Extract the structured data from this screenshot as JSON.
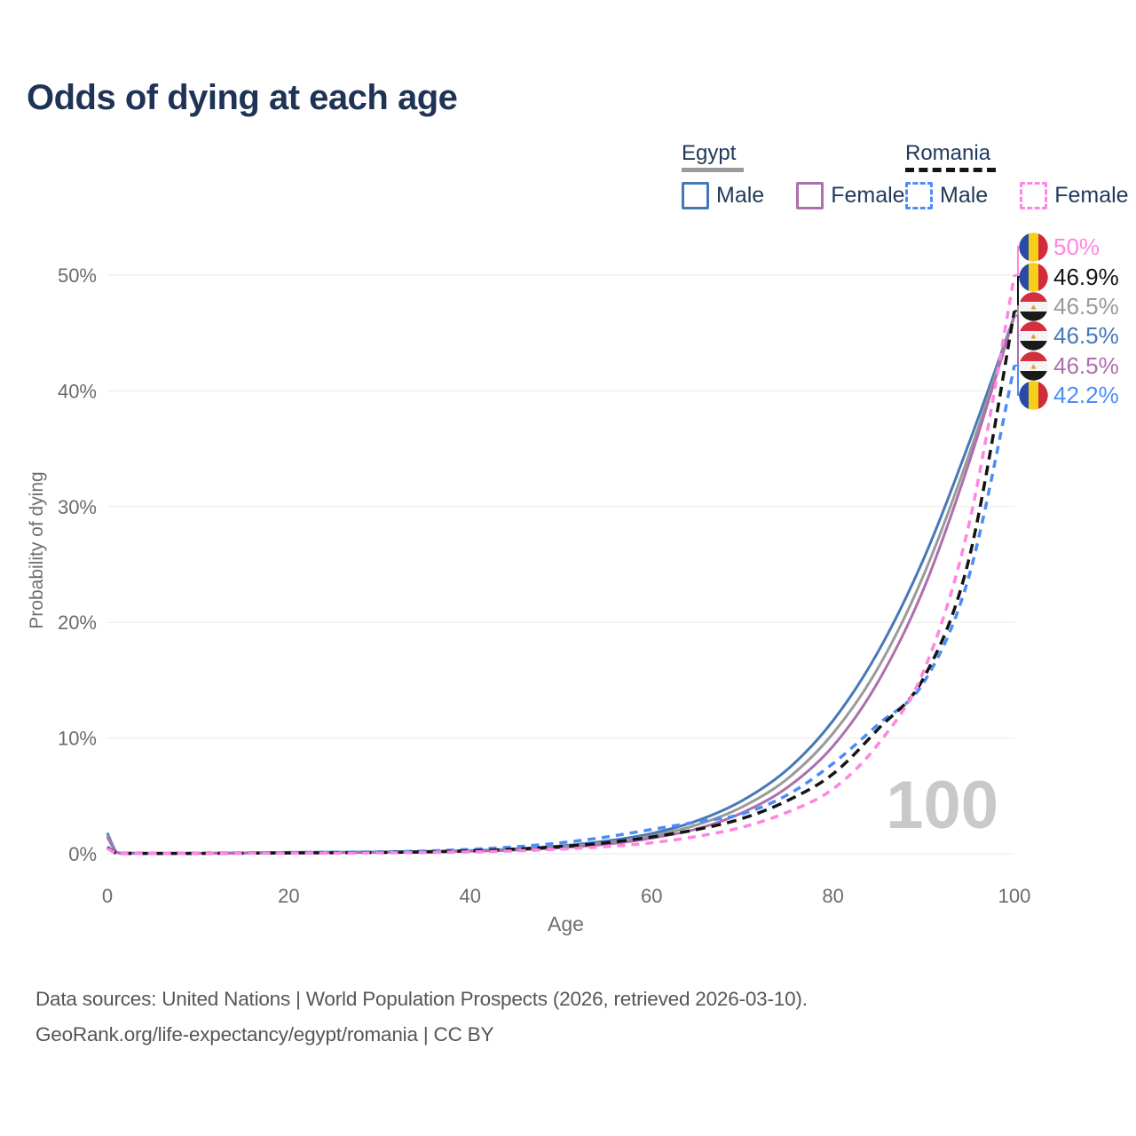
{
  "title": "Odds of dying at each age",
  "watermark": "100",
  "legend": {
    "groups": [
      {
        "name": "Egypt",
        "line_style": "solid",
        "line_color": "#9a9a9a",
        "items": [
          {
            "label": "Male",
            "color": "#4678b8",
            "style": "solid"
          },
          {
            "label": "Female",
            "color": "#ad6fad",
            "style": "solid"
          }
        ]
      },
      {
        "name": "Romania",
        "line_style": "dashed",
        "line_color": "#141414",
        "items": [
          {
            "label": "Male",
            "color": "#4c8df5",
            "style": "dashed"
          },
          {
            "label": "Female",
            "color": "#ff85e2",
            "style": "dashed"
          }
        ]
      }
    ]
  },
  "axes": {
    "x_label": "Age",
    "y_label": "Probability of dying",
    "x_ticks": [
      {
        "label": "0",
        "value": 0
      },
      {
        "label": "20",
        "value": 20
      },
      {
        "label": "40",
        "value": 40
      },
      {
        "label": "60",
        "value": 60
      },
      {
        "label": "80",
        "value": 80
      },
      {
        "label": "100",
        "value": 100
      }
    ],
    "y_ticks": [
      {
        "label": "0%",
        "value": 0
      },
      {
        "label": "10%",
        "value": 10
      },
      {
        "label": "20%",
        "value": 20
      },
      {
        "label": "30%",
        "value": 30
      },
      {
        "label": "40%",
        "value": 40
      },
      {
        "label": "50%",
        "value": 50
      }
    ]
  },
  "chart_data": {
    "type": "line",
    "title": "Odds of dying at each age",
    "xlabel": "Age",
    "ylabel": "Probability of dying",
    "xlim": [
      0,
      100
    ],
    "ylim_pct": [
      0,
      50
    ],
    "grid": "horizontal-only",
    "legend_position": "top-right",
    "x_ages": [
      0,
      1,
      2,
      3,
      4,
      5,
      10,
      15,
      20,
      25,
      30,
      35,
      40,
      45,
      50,
      55,
      60,
      65,
      70,
      75,
      80,
      85,
      90,
      95,
      100
    ],
    "series": [
      {
        "name": "Egypt Male",
        "country": "Egypt",
        "sex": "male",
        "color": "#4678b8",
        "dash": "solid",
        "end_label": "46.5%",
        "values_pct": [
          1.8,
          0.15,
          0.08,
          0.06,
          0.05,
          0.05,
          0.05,
          0.08,
          0.12,
          0.14,
          0.16,
          0.2,
          0.28,
          0.42,
          0.68,
          1.1,
          1.75,
          2.85,
          4.6,
          7.3,
          11.5,
          17.5,
          25.5,
          35.5,
          46.5
        ]
      },
      {
        "name": "Egypt",
        "country": "Egypt",
        "sex": "all",
        "color": "#9a9a9a",
        "dash": "solid",
        "end_label": "46.5%",
        "values_pct": [
          1.6,
          0.13,
          0.07,
          0.05,
          0.05,
          0.05,
          0.05,
          0.07,
          0.1,
          0.12,
          0.14,
          0.18,
          0.25,
          0.37,
          0.6,
          0.95,
          1.55,
          2.5,
          4.05,
          6.5,
          10.4,
          16.1,
          24.1,
          34.5,
          46.5
        ]
      },
      {
        "name": "Egypt Female",
        "country": "Egypt",
        "sex": "female",
        "color": "#ad6fad",
        "dash": "solid",
        "end_label": "46.5%",
        "values_pct": [
          1.45,
          0.12,
          0.06,
          0.05,
          0.04,
          0.04,
          0.04,
          0.06,
          0.08,
          0.1,
          0.12,
          0.16,
          0.22,
          0.32,
          0.52,
          0.82,
          1.35,
          2.15,
          3.55,
          5.75,
          9.3,
          14.9,
          22.9,
          33.8,
          46.5
        ]
      },
      {
        "name": "Romania Male",
        "country": "Romania",
        "sex": "male",
        "color": "#4c8df5",
        "dash": "dashed",
        "end_label": "42.2%",
        "values_pct": [
          0.6,
          0.05,
          0.04,
          0.03,
          0.03,
          0.03,
          0.04,
          0.07,
          0.1,
          0.13,
          0.16,
          0.24,
          0.38,
          0.6,
          0.95,
          1.45,
          2.1,
          2.75,
          3.45,
          5.1,
          7.8,
          11.2,
          14.8,
          24.0,
          42.2
        ]
      },
      {
        "name": "Romania",
        "country": "Romania",
        "sex": "all",
        "color": "#141414",
        "dash": "dashed",
        "end_label": "46.9%",
        "values_pct": [
          0.5,
          0.05,
          0.03,
          0.03,
          0.03,
          0.03,
          0.03,
          0.05,
          0.07,
          0.09,
          0.11,
          0.16,
          0.25,
          0.4,
          0.62,
          0.95,
          1.45,
          2.1,
          3.05,
          4.6,
          6.9,
          10.8,
          15.2,
          25.5,
          46.9
        ]
      },
      {
        "name": "Romania Female",
        "country": "Romania",
        "sex": "female",
        "color": "#ff85e2",
        "dash": "dashed",
        "end_label": "50%",
        "values_pct": [
          0.45,
          0.04,
          0.03,
          0.02,
          0.02,
          0.02,
          0.02,
          0.04,
          0.05,
          0.06,
          0.08,
          0.11,
          0.16,
          0.25,
          0.4,
          0.62,
          0.95,
          1.5,
          2.3,
          3.6,
          5.6,
          9.5,
          15.8,
          28.5,
          50.0
        ]
      }
    ]
  },
  "end_labels": [
    {
      "value_label": "50%",
      "value_pct": 50.0,
      "country": "Romania",
      "icon": "romania-flag-icon",
      "color": "#ff85e2"
    },
    {
      "value_label": "46.9%",
      "value_pct": 46.9,
      "country": "Romania",
      "icon": "romania-flag-icon",
      "color": "#141414"
    },
    {
      "value_label": "46.5%",
      "value_pct": 46.5,
      "country": "Egypt",
      "icon": "egypt-flag-icon",
      "color": "#9a9a9a"
    },
    {
      "value_label": "46.5%",
      "value_pct": 46.5,
      "country": "Egypt",
      "icon": "egypt-flag-icon",
      "color": "#4678b8"
    },
    {
      "value_label": "46.5%",
      "value_pct": 46.5,
      "country": "Egypt",
      "icon": "egypt-flag-icon",
      "color": "#ad6fad"
    },
    {
      "value_label": "42.2%",
      "value_pct": 42.2,
      "country": "Romania",
      "icon": "romania-flag-icon",
      "color": "#4c8df5"
    }
  ],
  "footer": {
    "line1": "Data sources: United Nations | World Population Prospects (2026, retrieved 2026-03-10).",
    "line2": "GeoRank.org/life-expectancy/egypt/romania | CC BY"
  }
}
